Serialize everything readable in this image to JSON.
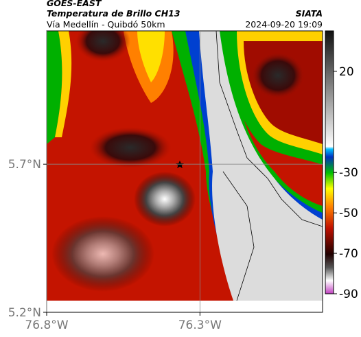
{
  "header": {
    "source": "GOES-EAST",
    "title": "Temperatura de Brillo CH13",
    "subtitle": "Vía Medellín - Quibdó 50km",
    "agency": "SIATA",
    "timestamp": "2024-09-20 19:09"
  },
  "map": {
    "xlim": [
      -76.8,
      -75.9
    ],
    "ylim": [
      5.2,
      6.15
    ],
    "xticks": [
      {
        "value": -76.8,
        "label": "76.8°W"
      },
      {
        "value": -76.3,
        "label": "76.3°W"
      }
    ],
    "yticks": [
      {
        "value": 5.2,
        "label": "5.2°N"
      },
      {
        "value": 5.7,
        "label": "5.7°N"
      }
    ],
    "grid": true
  },
  "colorbar": {
    "clim": [
      -90,
      40
    ],
    "ticks": [
      20,
      -30,
      -50,
      -70,
      -90
    ]
  }
}
